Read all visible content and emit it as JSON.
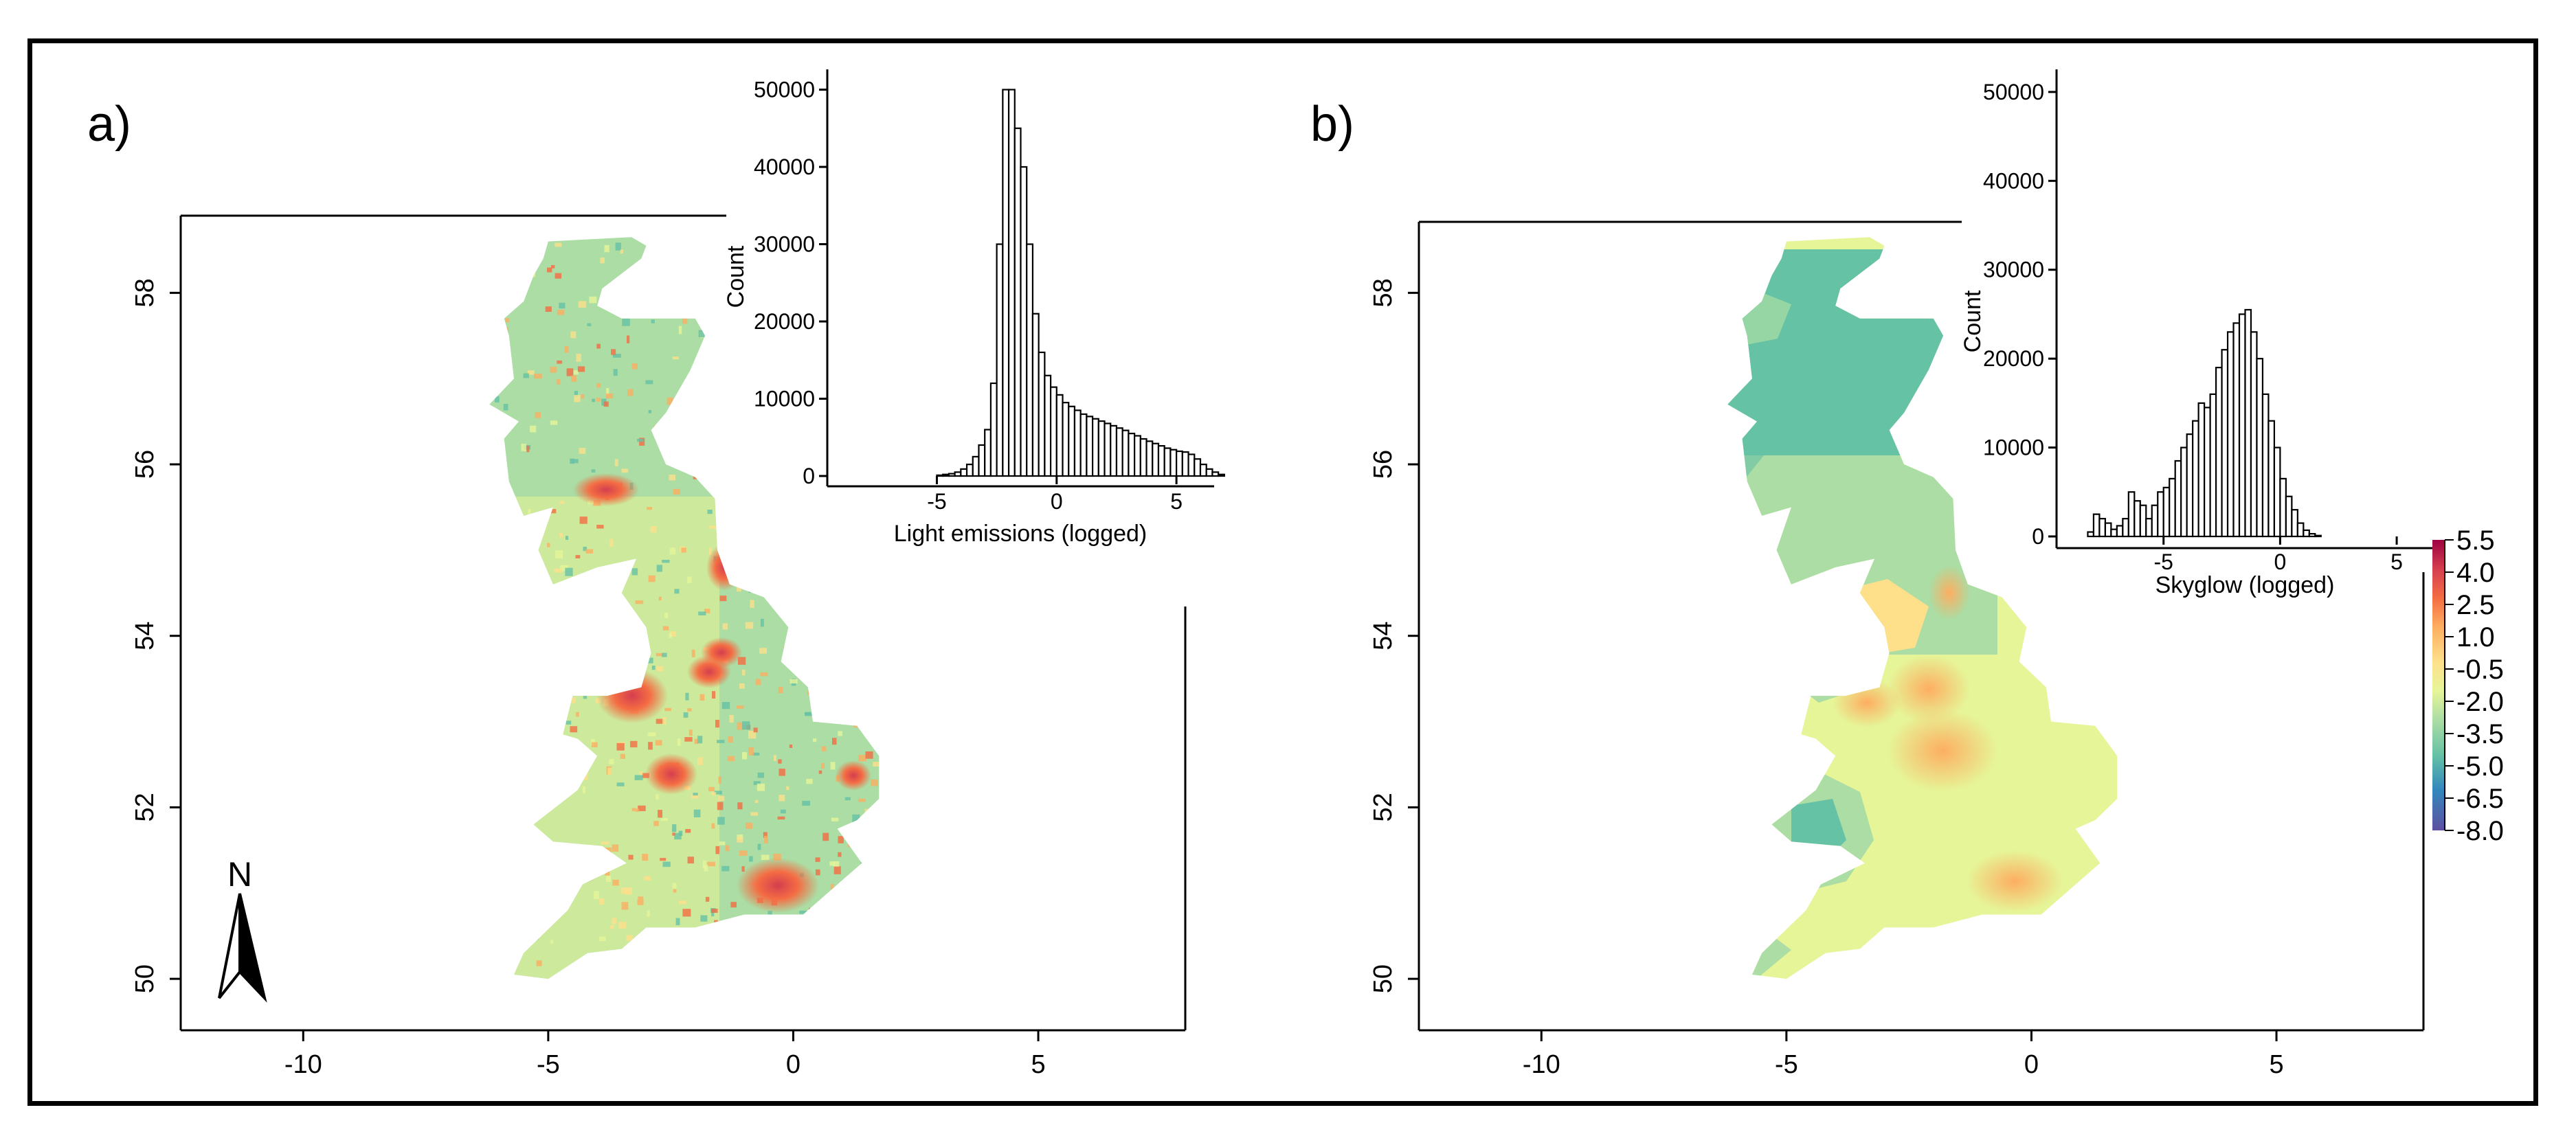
{
  "palette": [
    "#5e4fa2",
    "#3288bd",
    "#66c2a5",
    "#abdda4",
    "#e6f598",
    "#fee08b",
    "#fdae61",
    "#f46d43",
    "#d53e4f",
    "#9e0142"
  ],
  "panels": [
    {
      "label": "a)",
      "x_axis": {
        "ticks": [
          -10,
          -5,
          0,
          5
        ],
        "range": [
          -12.5,
          8.0
        ]
      },
      "y_axis": {
        "ticks": [
          50,
          52,
          54,
          56,
          58
        ],
        "range": [
          49.4,
          58.9
        ]
      },
      "north_arrow": "N",
      "histogram": {
        "xlabel": "Light emissions (logged)",
        "ylabel": "Count",
        "x_ticks": [
          -5,
          0,
          5
        ],
        "y_ticks": [
          0,
          10000,
          20000,
          30000,
          40000,
          50000
        ],
        "x_range": [
          -9,
          6
        ],
        "y_range": [
          0,
          52000
        ],
        "bin_start": -9,
        "bin_width": 0.25,
        "counts": [
          0,
          0,
          0,
          0,
          0,
          0,
          0,
          0,
          0,
          0,
          0,
          0,
          0,
          0,
          0,
          0,
          100,
          200,
          300,
          500,
          900,
          1500,
          2500,
          4000,
          6000,
          12000,
          30000,
          50000,
          50000,
          45000,
          40000,
          30000,
          21000,
          16000,
          13000,
          11500,
          10500,
          9500,
          9000,
          8500,
          8000,
          7700,
          7400,
          7100,
          6800,
          6500,
          6200,
          5900,
          5500,
          5200,
          4800,
          4500,
          4200,
          3900,
          3600,
          3400,
          3200,
          3100,
          2800,
          2200,
          1500,
          900,
          500,
          200,
          0,
          0,
          0,
          0,
          0,
          0
        ]
      }
    },
    {
      "label": "b)",
      "x_axis": {
        "ticks": [
          -10,
          -5,
          0,
          5
        ],
        "range": [
          -12.5,
          8.0
        ]
      },
      "y_axis": {
        "ticks": [
          50,
          52,
          54,
          56,
          58
        ],
        "range": [
          49.4,
          58.9
        ]
      },
      "histogram": {
        "xlabel": "Skyglow (logged)",
        "ylabel": "Count",
        "x_ticks": [
          -5,
          0,
          5
        ],
        "y_ticks": [
          0,
          10000,
          20000,
          30000,
          40000,
          50000
        ],
        "x_range": [
          -9,
          6
        ],
        "y_range": [
          0,
          52000
        ],
        "bin_start": -9,
        "bin_width": 0.25,
        "counts": [
          0,
          0,
          0,
          500,
          2500,
          2000,
          1500,
          800,
          1200,
          2000,
          5000,
          4000,
          3500,
          2000,
          3500,
          5000,
          5500,
          6500,
          8500,
          10000,
          11500,
          13000,
          15000,
          14500,
          16000,
          19000,
          21000,
          23000,
          24000,
          25000,
          25500,
          23000,
          20000,
          16000,
          13000,
          10000,
          6500,
          4500,
          3000,
          1500,
          700,
          300,
          100,
          0,
          0,
          0,
          0,
          0,
          0,
          0,
          0,
          0,
          0,
          0,
          0,
          0,
          0,
          0,
          0,
          0
        ]
      },
      "colorbar": {
        "labels": [
          "5.5",
          "4.0",
          "2.5",
          "1.0",
          "-0.5",
          "-2.0",
          "-3.5",
          "-5.0",
          "-6.5",
          "-8.0"
        ]
      }
    }
  ]
}
